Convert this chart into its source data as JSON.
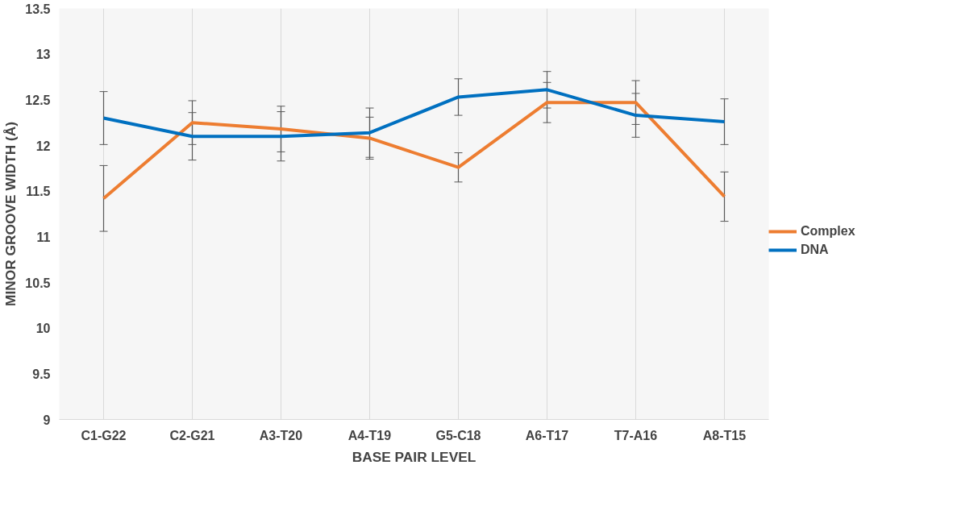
{
  "chart_data": {
    "type": "line",
    "xlabel": "BASE PAIR LEVEL",
    "ylabel": "MINOR GROOVE WIDTH (Å)",
    "categories": [
      "C1-G22",
      "C2-G21",
      "A3-T20",
      "A4-T19",
      "G5-C18",
      "A6-T17",
      "T7-A16",
      "A8-T15"
    ],
    "series": [
      {
        "name": "Complex",
        "color": "#ed7d31",
        "values": [
          11.42,
          12.25,
          12.18,
          12.08,
          11.76,
          12.47,
          12.47,
          11.44
        ],
        "errors": [
          0.36,
          0.24,
          0.25,
          0.23,
          0.16,
          0.22,
          0.24,
          0.27
        ]
      },
      {
        "name": "DNA",
        "color": "#0070c0",
        "values": [
          12.3,
          12.1,
          12.1,
          12.14,
          12.53,
          12.61,
          12.33,
          12.26
        ],
        "errors": [
          0.29,
          0.26,
          0.27,
          0.27,
          0.2,
          0.2,
          0.24,
          0.25
        ]
      }
    ],
    "ylim": [
      9,
      13.5
    ],
    "yticks": [
      9,
      9.5,
      10,
      10.5,
      11,
      11.5,
      12,
      12.5,
      13,
      13.5
    ],
    "grid": "x",
    "legend": "right",
    "marker": "none",
    "line_style": "solid"
  }
}
